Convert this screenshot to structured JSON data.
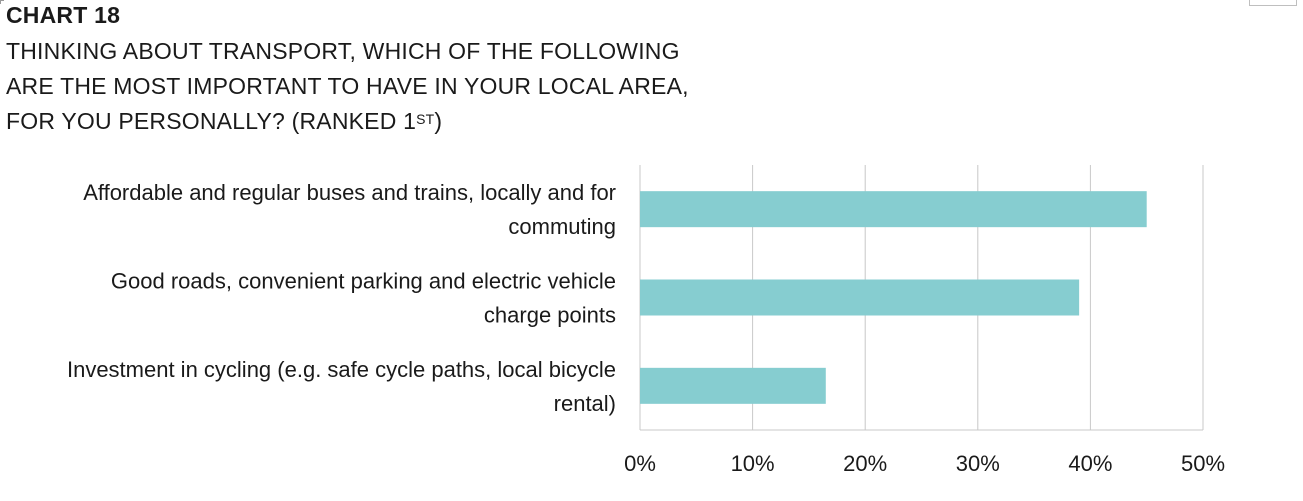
{
  "header": {
    "chart_number": "CHART 18",
    "title_lines": [
      "THINKING ABOUT TRANSPORT, WHICH OF THE FOLLOWING",
      "ARE THE MOST IMPORTANT TO HAVE IN YOUR LOCAL AREA,"
    ],
    "title_last_line_prefix": "FOR YOU PERSONALLY? (RANKED 1",
    "title_superscript": "ST",
    "title_last_line_suffix": ")"
  },
  "chart_data": {
    "type": "bar",
    "orientation": "horizontal",
    "categories": [
      [
        "Affordable and regular buses and trains, locally and for",
        "commuting"
      ],
      [
        "Good roads, convenient parking and electric vehicle",
        "charge points"
      ],
      [
        "Investment in cycling (e.g. safe cycle paths, local bicycle",
        "rental)"
      ]
    ],
    "values": [
      45,
      39,
      16.5
    ],
    "xlim": [
      0,
      50
    ],
    "xticks": [
      0,
      10,
      20,
      30,
      40,
      50
    ],
    "xtick_labels": [
      "0%",
      "10%",
      "20%",
      "30%",
      "40%",
      "50%"
    ],
    "grid": true,
    "bar_color": "#86cdd0",
    "grid_color": "#c8c8c8"
  }
}
